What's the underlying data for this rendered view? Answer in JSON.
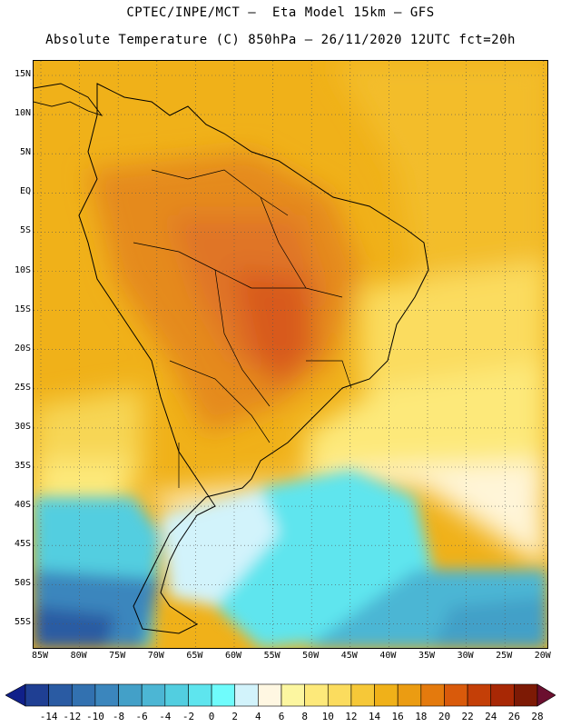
{
  "header": {
    "line1": "CPTEC/INPE/MCT —  Eta Model 15km — GFS",
    "line2": "Absolute Temperature (C) 850hPa — 26/11/2020 12UTC fct=20h"
  },
  "map": {
    "lat_labels": [
      "15N",
      "10N",
      "5N",
      "EQ",
      "5S",
      "10S",
      "15S",
      "20S",
      "25S",
      "30S",
      "35S",
      "40S",
      "45S",
      "50S",
      "55S"
    ],
    "lon_labels": [
      "85W",
      "80W",
      "75W",
      "70W",
      "65W",
      "60W",
      "55W",
      "50W",
      "45W",
      "40W",
      "35W",
      "30W",
      "25W",
      "20W"
    ],
    "gridlines": "dotted"
  },
  "colorbar": {
    "labels": [
      "-14",
      "-12",
      "-10",
      "-8",
      "-6",
      "-4",
      "-2",
      "0",
      "2",
      "4",
      "6",
      "8",
      "10",
      "12",
      "14",
      "16",
      "18",
      "20",
      "22",
      "24",
      "26",
      "28"
    ],
    "colors": [
      "#1f3f93",
      "#2a5ba3",
      "#3271b0",
      "#3b86bd",
      "#43a0c8",
      "#4cb6d4",
      "#52cee0",
      "#5ee5ee",
      "#6ffcfc",
      "#d2f3fb",
      "#fff7e2",
      "#fcf6a0",
      "#fde97a",
      "#fbdc5e",
      "#f6c838",
      "#f0b119",
      "#eb9c12",
      "#e47a0d",
      "#d95a0b",
      "#c43f07",
      "#a82805",
      "#7d1a05"
    ],
    "end_left_color": "#10208a",
    "end_right_color": "#6b0f2f"
  }
}
